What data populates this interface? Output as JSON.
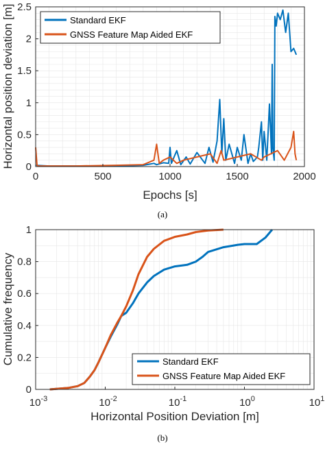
{
  "colors": {
    "standard": "#0072bd",
    "aided": "#d95319",
    "grid": "#e6e6e6",
    "axis": "#262626"
  },
  "chart_data": [
    {
      "type": "line",
      "caption": "(a)",
      "xlabel": "Epochs [s]",
      "ylabel": "Horizontal position deviation [m]",
      "xlim": [
        0,
        2000
      ],
      "ylim": [
        0,
        2.5
      ],
      "xticks": [
        "0",
        "500",
        "1000",
        "1500",
        "2000"
      ],
      "yticks": [
        "0",
        "0.5",
        "1",
        "1.5",
        "2",
        "2.5"
      ],
      "grid": true,
      "legend": "top-left",
      "series": [
        {
          "name": "Standard EKF",
          "x": [
            0,
            100,
            300,
            600,
            800,
            880,
            900,
            950,
            990,
            1000,
            1010,
            1050,
            1080,
            1120,
            1150,
            1200,
            1260,
            1290,
            1320,
            1350,
            1370,
            1385,
            1400,
            1415,
            1440,
            1480,
            1500,
            1530,
            1550,
            1580,
            1600,
            1620,
            1650,
            1660,
            1680,
            1690,
            1700,
            1720,
            1740,
            1755,
            1760,
            1765,
            1775,
            1780,
            1790,
            1800,
            1820,
            1840,
            1860,
            1880,
            1900,
            1920,
            1940
          ],
          "y": [
            0.02,
            0.01,
            0.01,
            0.01,
            0.02,
            0.05,
            0.03,
            0.06,
            0.05,
            0.3,
            0.05,
            0.25,
            0.03,
            0.15,
            0.04,
            0.22,
            0.05,
            0.3,
            0.07,
            0.4,
            1.05,
            0.2,
            0.75,
            0.1,
            0.35,
            0.05,
            0.3,
            0.1,
            0.5,
            0.05,
            0.2,
            0.08,
            0.15,
            0.3,
            0.7,
            0.1,
            0.55,
            0.1,
            0.98,
            0.2,
            1.6,
            0.3,
            0.1,
            2.35,
            2.2,
            2.4,
            2.3,
            2.45,
            2.1,
            2.4,
            1.8,
            1.85,
            1.75
          ]
        },
        {
          "name": "GNSS Feature Map Aided EKF",
          "x": [
            0,
            10,
            20,
            100,
            300,
            600,
            800,
            880,
            900,
            920,
            950,
            1000,
            1050,
            1100,
            1200,
            1300,
            1350,
            1380,
            1400,
            1500,
            1600,
            1680,
            1700,
            1750,
            1800,
            1850,
            1900,
            1920,
            1930,
            1940
          ],
          "y": [
            0.3,
            0.02,
            0.01,
            0.01,
            0.01,
            0.02,
            0.03,
            0.1,
            0.35,
            0.05,
            0.1,
            0.15,
            0.05,
            0.1,
            0.15,
            0.2,
            0.05,
            0.25,
            0.1,
            0.15,
            0.2,
            0.1,
            0.15,
            0.2,
            0.25,
            0.1,
            0.3,
            0.55,
            0.2,
            0.1
          ]
        }
      ]
    },
    {
      "type": "line",
      "caption": "(b)",
      "xlabel": "Horizontal Position Deviation [m]",
      "ylabel": "Cumulative frequency",
      "xscale": "log",
      "xlim": [
        0.001,
        10
      ],
      "ylim": [
        0,
        1
      ],
      "xticks": [
        {
          "base": "10",
          "exp": "-3"
        },
        {
          "base": "10",
          "exp": "-2"
        },
        {
          "base": "10",
          "exp": "-1"
        },
        {
          "base": "10",
          "exp": "0"
        },
        {
          "base": "10",
          "exp": "1"
        }
      ],
      "yticks": [
        "0",
        "0.2",
        "0.4",
        "0.6",
        "0.8",
        "1"
      ],
      "grid": true,
      "legend": "bottom-right",
      "series": [
        {
          "name": "Standard EKF",
          "x": [
            0.0016,
            0.003,
            0.004,
            0.005,
            0.006,
            0.007,
            0.008,
            0.01,
            0.012,
            0.015,
            0.017,
            0.02,
            0.025,
            0.03,
            0.04,
            0.05,
            0.07,
            0.1,
            0.15,
            0.2,
            0.25,
            0.3,
            0.5,
            0.8,
            1,
            1.5,
            2,
            2.5
          ],
          "y": [
            0.0,
            0.01,
            0.02,
            0.04,
            0.08,
            0.12,
            0.17,
            0.26,
            0.33,
            0.41,
            0.46,
            0.48,
            0.54,
            0.6,
            0.67,
            0.71,
            0.75,
            0.77,
            0.78,
            0.8,
            0.83,
            0.86,
            0.89,
            0.905,
            0.91,
            0.91,
            0.95,
            1.0
          ]
        },
        {
          "name": "GNSS Feature Map Aided EKF",
          "x": [
            0.0016,
            0.003,
            0.004,
            0.005,
            0.006,
            0.007,
            0.008,
            0.01,
            0.012,
            0.015,
            0.017,
            0.02,
            0.025,
            0.03,
            0.04,
            0.05,
            0.07,
            0.1,
            0.15,
            0.2,
            0.3,
            0.5
          ],
          "y": [
            0.0,
            0.01,
            0.02,
            0.04,
            0.08,
            0.12,
            0.17,
            0.26,
            0.34,
            0.42,
            0.46,
            0.52,
            0.62,
            0.72,
            0.83,
            0.88,
            0.93,
            0.955,
            0.97,
            0.985,
            0.995,
            1.0
          ]
        }
      ]
    }
  ]
}
